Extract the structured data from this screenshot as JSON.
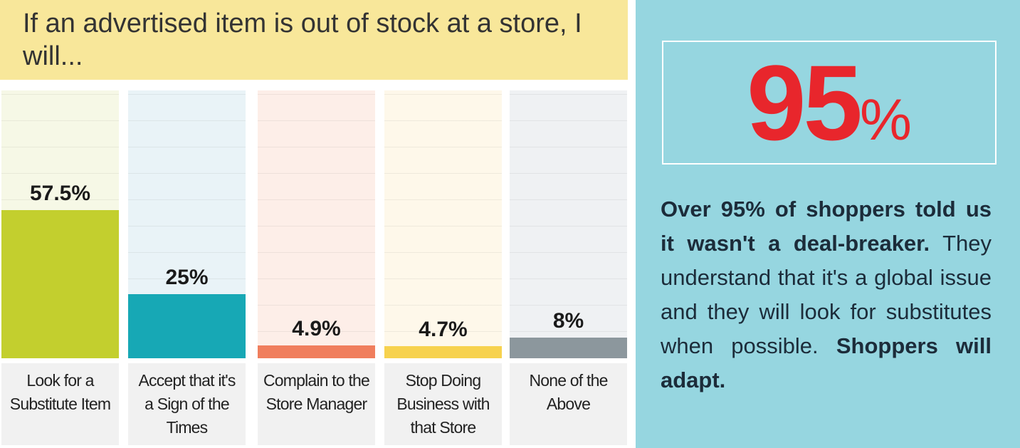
{
  "chart_data": {
    "type": "bar",
    "title": "If an advertised item is out of stock at a store, I will...",
    "categories": [
      "Look for a Substitute Item",
      "Accept that it's a Sign of the Times",
      "Complain to the Store Manager",
      "Stop Doing Business with that Store",
      "None of the Above"
    ],
    "values": [
      57.5,
      25,
      4.9,
      4.7,
      8
    ],
    "value_labels": [
      "57.5%",
      "25%",
      "4.9%",
      "4.7%",
      "8%"
    ],
    "colors": [
      "#c3cf2e",
      "#17a8b5",
      "#f07e5d",
      "#f7d24e",
      "#8c979d"
    ],
    "background_colors": [
      "#f6f8e6",
      "#e9f3f7",
      "#fdeee8",
      "#fef8ea",
      "#eff1f3"
    ]
  },
  "callout": {
    "number": "95",
    "unit": "%"
  },
  "body": [
    "Over 95% of shoppers told us it wasn't a deal-breaker.",
    "They understand that it's a global issue and they will look for substitutes when possible.",
    "Shoppers will adapt."
  ]
}
